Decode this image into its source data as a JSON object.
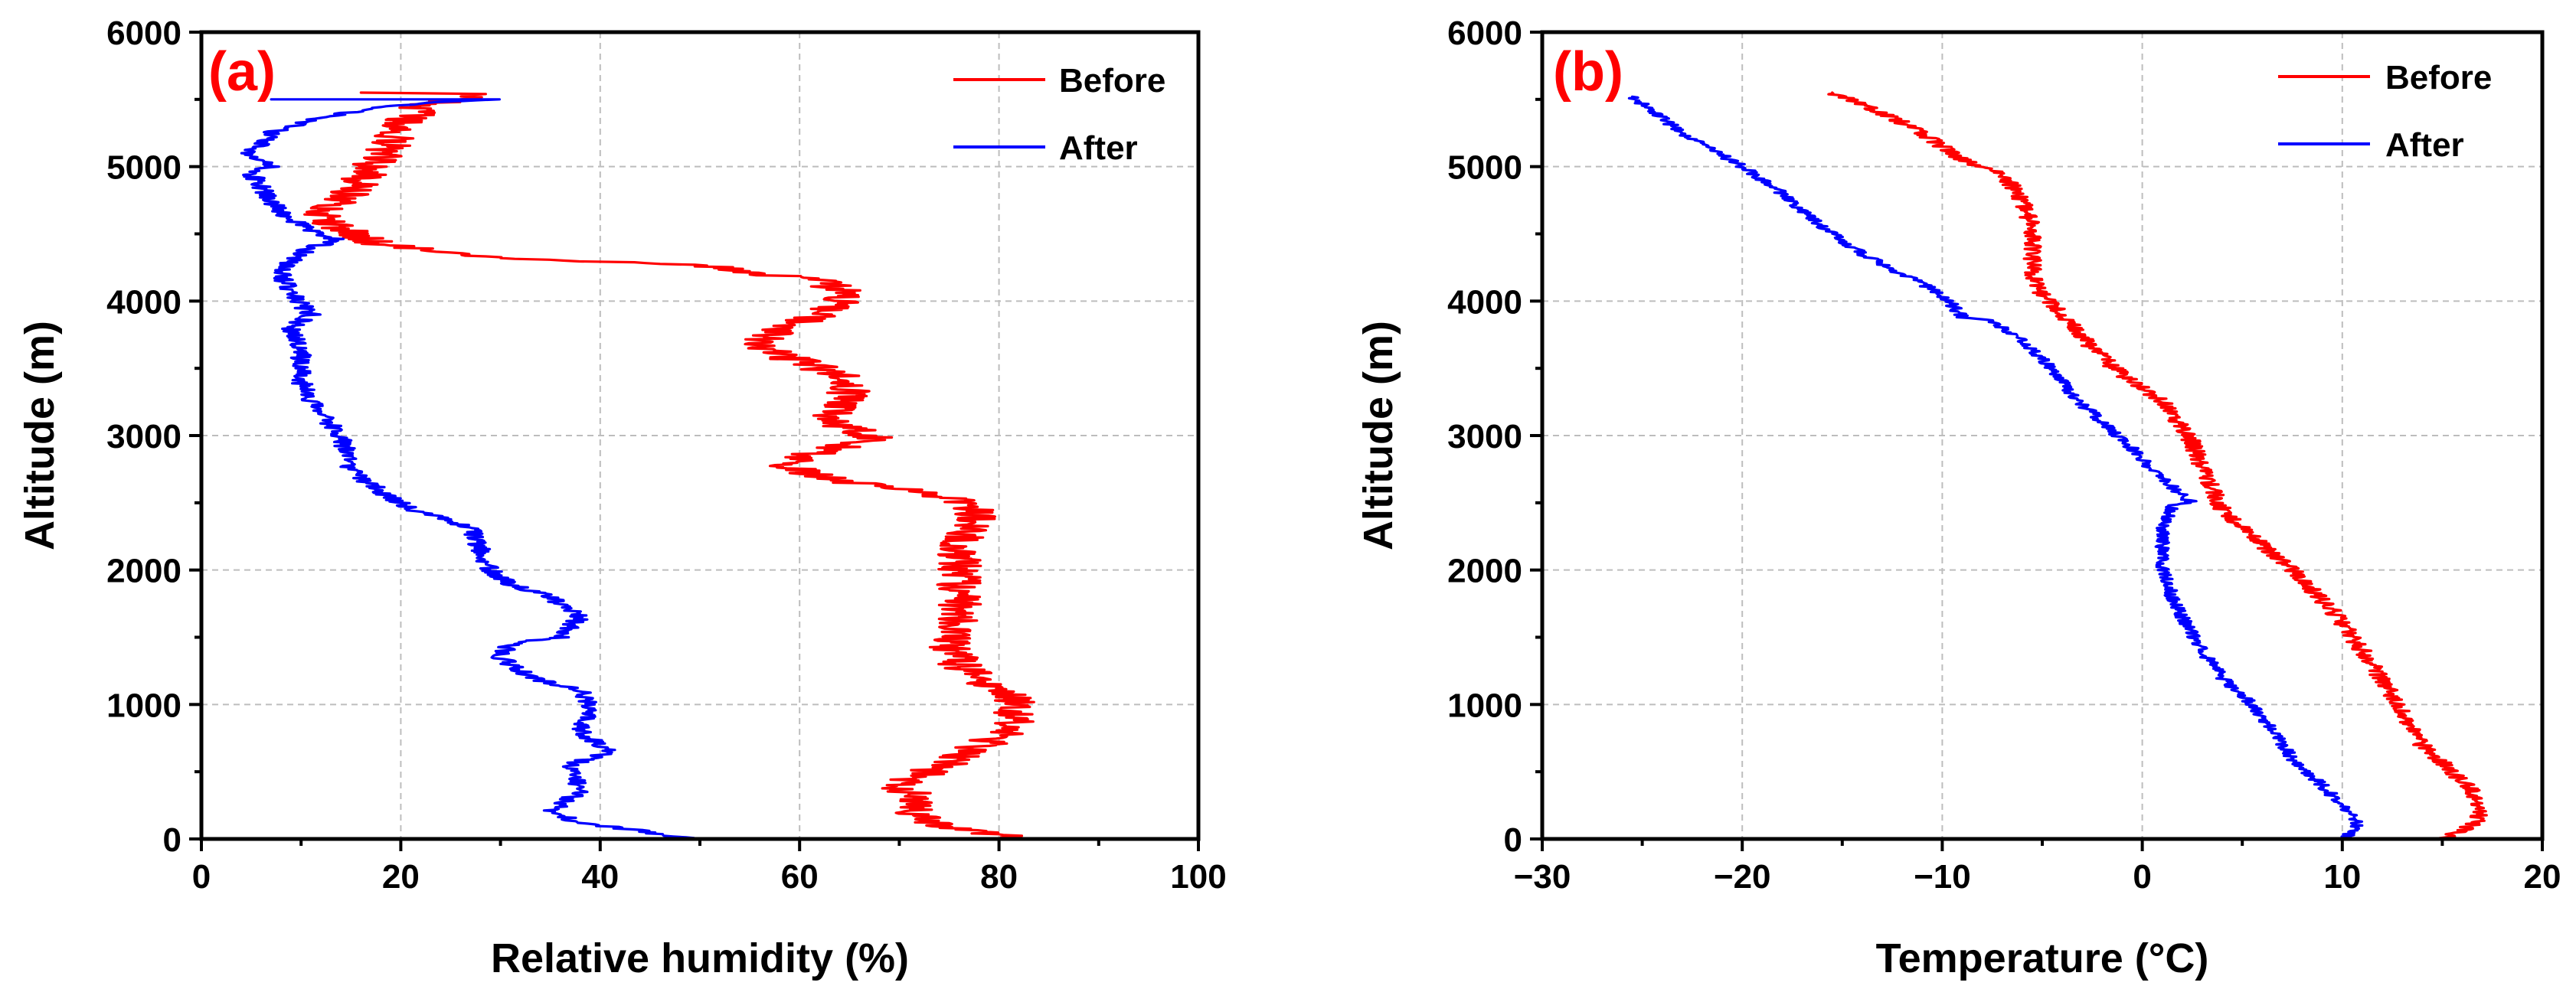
{
  "colors": {
    "before": "#ff0000",
    "after": "#0000ff"
  },
  "chart_data": [
    {
      "type": "line",
      "panel": "(a)",
      "xlabel": "Relative humidity (%)",
      "ylabel": "Altitude (m)",
      "xlim": [
        0,
        100
      ],
      "ylim": [
        0,
        6000
      ],
      "xticks": [
        0,
        20,
        40,
        60,
        80,
        100
      ],
      "yticks": [
        0,
        1000,
        2000,
        3000,
        4000,
        5000,
        6000
      ],
      "xtick_labels": [
        "0",
        "20",
        "40",
        "60",
        "80",
        "100"
      ],
      "ytick_labels": [
        "0",
        "1000",
        "2000",
        "3000",
        "4000",
        "5000",
        "6000"
      ],
      "grid": true,
      "legend_position": "top-right",
      "series": [
        {
          "name": "Before",
          "color": "#ff0000",
          "points": [
            [
              82,
              0
            ],
            [
              74,
              100
            ],
            [
              71,
              200
            ],
            [
              72,
              300
            ],
            [
              70,
              400
            ],
            [
              73,
              500
            ],
            [
              77,
              650
            ],
            [
              81,
              800
            ],
            [
              82,
              1000
            ],
            [
              79,
              1150
            ],
            [
              76,
              1300
            ],
            [
              75,
              1450
            ],
            [
              76,
              1600
            ],
            [
              76,
              1800
            ],
            [
              76,
              2000
            ],
            [
              76,
              2200
            ],
            [
              78,
              2350
            ],
            [
              77,
              2500
            ],
            [
              72,
              2580
            ],
            [
              65,
              2650
            ],
            [
              58,
              2780
            ],
            [
              62,
              2880
            ],
            [
              68,
              2980
            ],
            [
              63,
              3100
            ],
            [
              65,
              3300
            ],
            [
              64,
              3450
            ],
            [
              58,
              3600
            ],
            [
              55,
              3680
            ],
            [
              58,
              3780
            ],
            [
              62,
              3900
            ],
            [
              65,
              4050
            ],
            [
              62,
              4150
            ],
            [
              50,
              4270
            ],
            [
              30,
              4320
            ],
            [
              18,
              4420
            ],
            [
              14,
              4550
            ],
            [
              12,
              4620
            ],
            [
              15,
              4800
            ],
            [
              17,
              5000
            ],
            [
              19,
              5150
            ],
            [
              20,
              5300
            ],
            [
              22,
              5450
            ],
            [
              28,
              5540
            ],
            [
              16,
              5550
            ]
          ]
        },
        {
          "name": "After",
          "color": "#0000ff",
          "points": [
            [
              49,
              0
            ],
            [
              44,
              60
            ],
            [
              38,
              120
            ],
            [
              35,
              200
            ],
            [
              38,
              350
            ],
            [
              37,
              550
            ],
            [
              41,
              650
            ],
            [
              38,
              800
            ],
            [
              39,
              1000
            ],
            [
              38,
              1100
            ],
            [
              33,
              1200
            ],
            [
              30,
              1350
            ],
            [
              31,
              1450
            ],
            [
              36,
              1500
            ],
            [
              38,
              1650
            ],
            [
              35,
              1800
            ],
            [
              31,
              1900
            ],
            [
              29,
              2000
            ],
            [
              28,
              2150
            ],
            [
              27,
              2300
            ],
            [
              24,
              2400
            ],
            [
              21,
              2450
            ],
            [
              18,
              2580
            ],
            [
              15,
              2750
            ],
            [
              14,
              3000
            ],
            [
              12,
              3150
            ],
            [
              10,
              3400
            ],
            [
              10,
              3650
            ],
            [
              9,
              3800
            ],
            [
              11,
              3900
            ],
            [
              9,
              4050
            ],
            [
              8,
              4200
            ],
            [
              9,
              4300
            ],
            [
              11,
              4400
            ],
            [
              14,
              4450
            ],
            [
              11,
              4520
            ],
            [
              8,
              4650
            ],
            [
              6,
              4850
            ],
            [
              5,
              4950
            ],
            [
              7,
              5000
            ],
            [
              5,
              5100
            ],
            [
              7,
              5250
            ],
            [
              11,
              5350
            ],
            [
              17,
              5430
            ],
            [
              23,
              5480
            ],
            [
              30,
              5500
            ],
            [
              7,
              5500
            ]
          ]
        }
      ]
    },
    {
      "type": "line",
      "panel": "(b)",
      "xlabel": "Temperature (°C)",
      "ylabel": "Altitude (m)",
      "xlim": [
        -30,
        20
      ],
      "ylim": [
        0,
        6000
      ],
      "xticks": [
        -30,
        -20,
        -10,
        0,
        10,
        20
      ],
      "yticks": [
        0,
        1000,
        2000,
        3000,
        4000,
        5000,
        6000
      ],
      "xtick_labels": [
        "−30",
        "−20",
        "−10",
        "0",
        "10",
        "20"
      ],
      "ytick_labels": [
        "0",
        "1000",
        "2000",
        "3000",
        "4000",
        "5000",
        "6000"
      ],
      "grid": true,
      "legend_position": "top-right",
      "series": [
        {
          "name": "Before",
          "color": "#ff0000",
          "points": [
            [
              15,
              0
            ],
            [
              16.5,
              100
            ],
            [
              17,
              200
            ],
            [
              16.5,
              350
            ],
            [
              15.5,
              500
            ],
            [
              14,
              700
            ],
            [
              12.8,
              1000
            ],
            [
              11,
              1400
            ],
            [
              9.5,
              1700
            ],
            [
              7.5,
              2000
            ],
            [
              5.5,
              2250
            ],
            [
              4,
              2450
            ],
            [
              3,
              2750
            ],
            [
              2.5,
              2950
            ],
            [
              1,
              3250
            ],
            [
              -1,
              3450
            ],
            [
              -2.5,
              3650
            ],
            [
              -4,
              3900
            ],
            [
              -5,
              4050
            ],
            [
              -5.5,
              4200
            ],
            [
              -5.5,
              4400
            ],
            [
              -5.5,
              4550
            ],
            [
              -6,
              4750
            ],
            [
              -7,
              4950
            ],
            [
              -9,
              5050
            ],
            [
              -10.5,
              5200
            ],
            [
              -12,
              5330
            ],
            [
              -15.5,
              5550
            ]
          ]
        },
        {
          "name": "After",
          "color": "#0000ff",
          "points": [
            [
              10,
              0
            ],
            [
              10.8,
              100
            ],
            [
              10.3,
              200
            ],
            [
              9,
              400
            ],
            [
              7.5,
              600
            ],
            [
              6.5,
              800
            ],
            [
              5.5,
              1000
            ],
            [
              4,
              1200
            ],
            [
              3,
              1400
            ],
            [
              2.2,
              1600
            ],
            [
              1.5,
              1800
            ],
            [
              1,
              2000
            ],
            [
              1,
              2300
            ],
            [
              1.5,
              2480
            ],
            [
              2.5,
              2500
            ],
            [
              0.8,
              2700
            ],
            [
              -0.5,
              2900
            ],
            [
              -2,
              3100
            ],
            [
              -3.5,
              3300
            ],
            [
              -4.5,
              3500
            ],
            [
              -6,
              3700
            ],
            [
              -7.5,
              3850
            ],
            [
              -9,
              3880
            ],
            [
              -10,
              4050
            ],
            [
              -12,
              4200
            ],
            [
              -14,
              4350
            ],
            [
              -16,
              4550
            ],
            [
              -18,
              4800
            ],
            [
              -20,
              5000
            ],
            [
              -23,
              5250
            ],
            [
              -25.5,
              5520
            ]
          ]
        }
      ]
    }
  ]
}
